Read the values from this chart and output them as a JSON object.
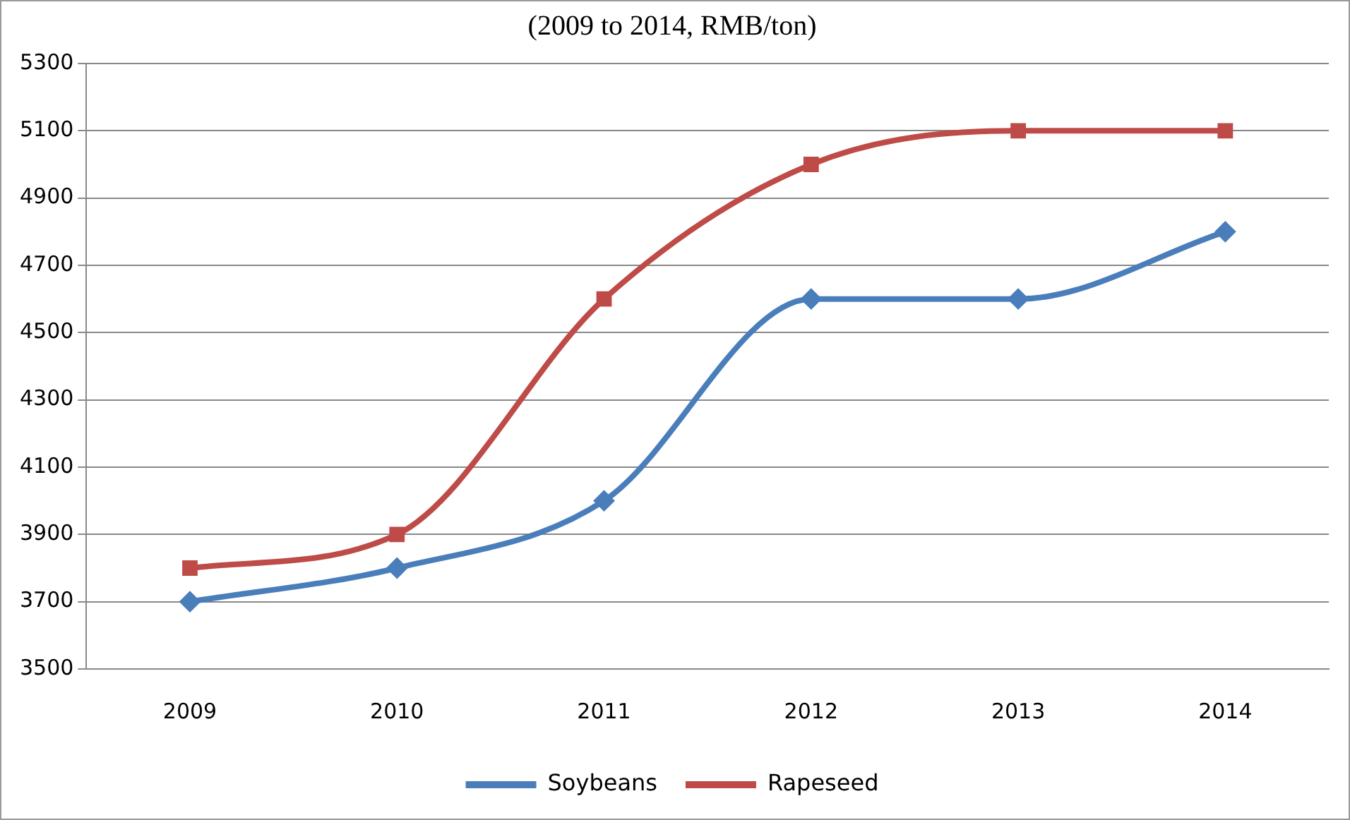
{
  "chart_data": {
    "type": "line",
    "title": "(2009 to 2014, RMB/ton)",
    "categories": [
      "2009",
      "2010",
      "2011",
      "2012",
      "2013",
      "2014"
    ],
    "series": [
      {
        "name": "Soybeans",
        "color": "#4a7ebb",
        "marker": "diamond",
        "values": [
          3700,
          3800,
          4000,
          4600,
          4600,
          4800
        ]
      },
      {
        "name": "Rapeseed",
        "color": "#be4b48",
        "marker": "square",
        "values": [
          3800,
          3900,
          4600,
          5000,
          5100,
          5100
        ]
      }
    ],
    "ylim": [
      3500,
      5300
    ],
    "yticks": [
      3500,
      3700,
      3900,
      4100,
      4300,
      4500,
      4700,
      4900,
      5100,
      5300
    ],
    "grid": "y",
    "legend": "bottom"
  }
}
